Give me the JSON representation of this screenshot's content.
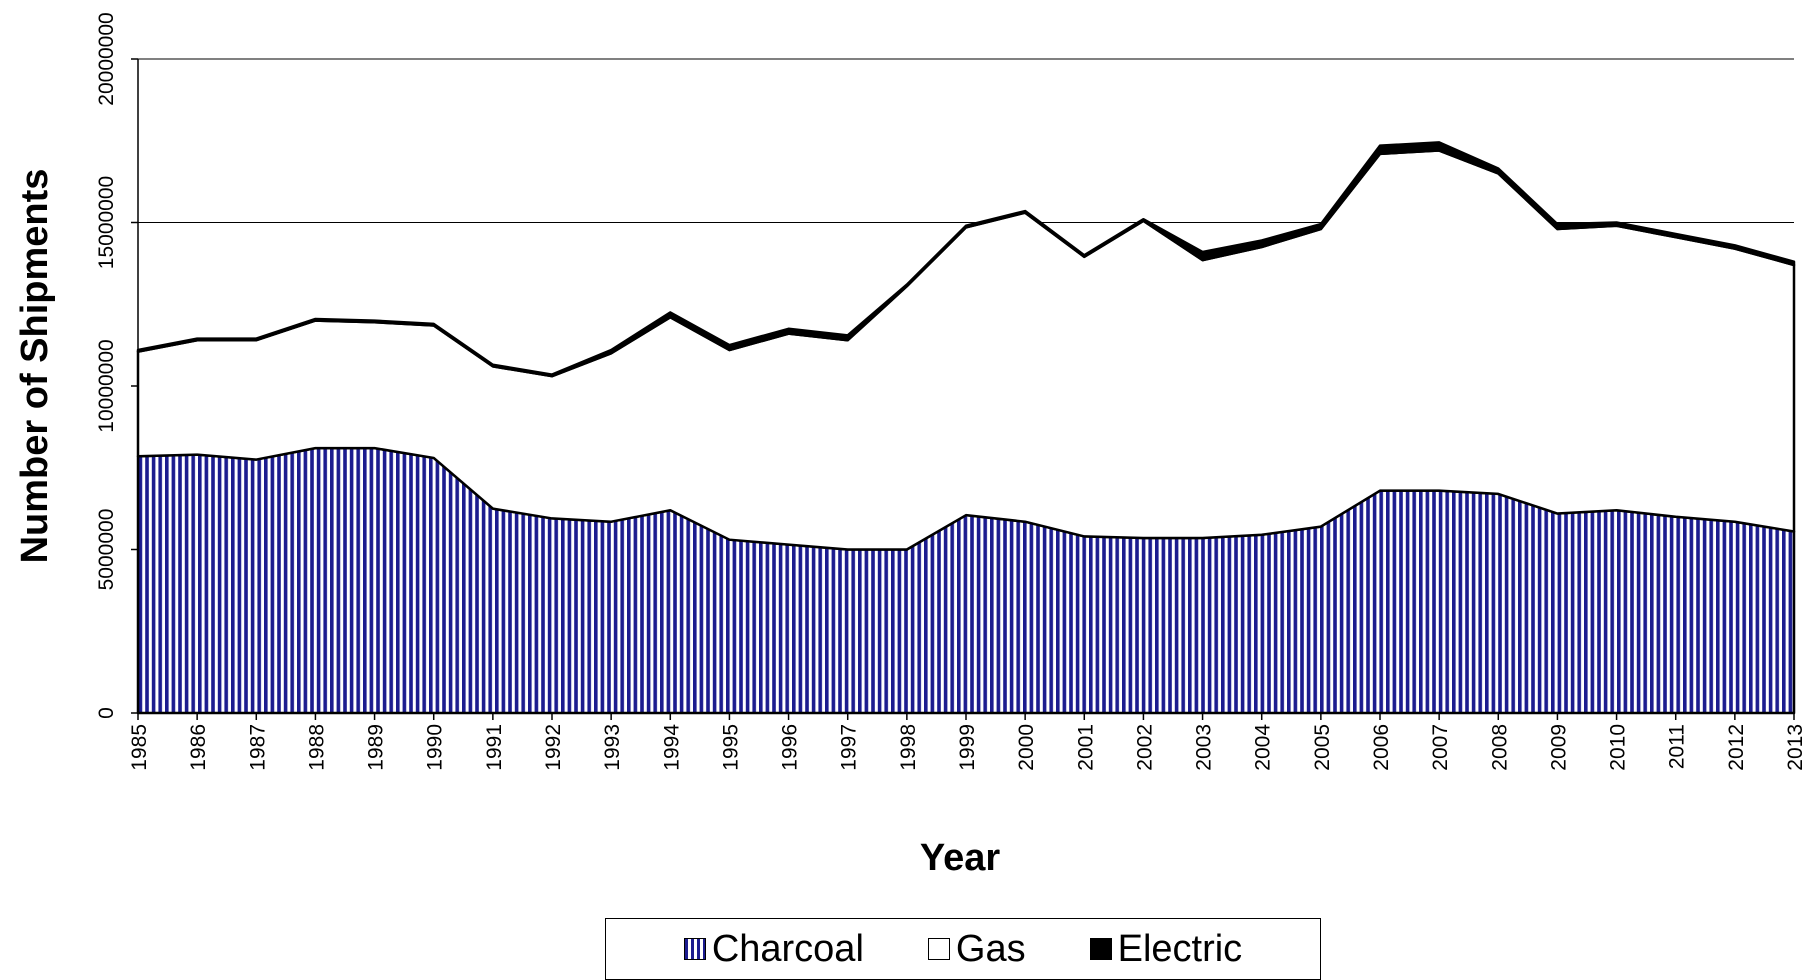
{
  "chart_data": {
    "type": "area",
    "stacked": true,
    "xlabel": "Year",
    "ylabel": "Number of Shipments",
    "ylim": [
      0,
      20000000
    ],
    "yticks": [
      0,
      5000000,
      10000000,
      15000000,
      20000000
    ],
    "ytick_labels": [
      "0",
      "5000000",
      "10000000",
      "15000000",
      "20000000"
    ],
    "grid": "horizontal",
    "legend_position": "bottom",
    "x": [
      "1985",
      "1986",
      "1987",
      "1988",
      "1989",
      "1990",
      "1991",
      "1992",
      "1993",
      "1994",
      "1995",
      "1996",
      "1997",
      "1998",
      "1999",
      "2000",
      "2001",
      "2002",
      "2003",
      "2004",
      "2005",
      "2006",
      "2007",
      "2008",
      "2009",
      "2010",
      "2011",
      "2012",
      "2013"
    ],
    "series": [
      {
        "name": "Charcoal",
        "color": "#1c1c8f",
        "pattern": "vertical-stripes",
        "values": [
          7850000,
          7900000,
          7750000,
          8100000,
          8100000,
          7800000,
          6250000,
          5950000,
          5850000,
          6200000,
          5300000,
          5150000,
          5000000,
          5000000,
          6050000,
          5850000,
          5400000,
          5350000,
          5350000,
          5450000,
          5700000,
          6800000,
          6800000,
          6700000,
          6100000,
          6200000,
          6000000,
          5850000,
          5550000
        ]
      },
      {
        "name": "Gas",
        "color": "#ffffff",
        "values": [
          3200000,
          3500000,
          3650000,
          3900000,
          3850000,
          4050000,
          4350000,
          4350000,
          5150000,
          5900000,
          5800000,
          6450000,
          6400000,
          8050000,
          8800000,
          9450000,
          8550000,
          9700000,
          8500000,
          8800000,
          9100000,
          10300000,
          10400000,
          9800000,
          8700000,
          8700000,
          8550000,
          8350000,
          8150000
        ]
      },
      {
        "name": "Electric",
        "color": "#000000",
        "values": [
          50000,
          50000,
          50000,
          50000,
          50000,
          50000,
          50000,
          50000,
          100000,
          150000,
          150000,
          150000,
          150000,
          50000,
          50000,
          50000,
          50000,
          50000,
          250000,
          200000,
          150000,
          250000,
          250000,
          150000,
          150000,
          100000,
          100000,
          100000,
          100000
        ]
      }
    ]
  }
}
